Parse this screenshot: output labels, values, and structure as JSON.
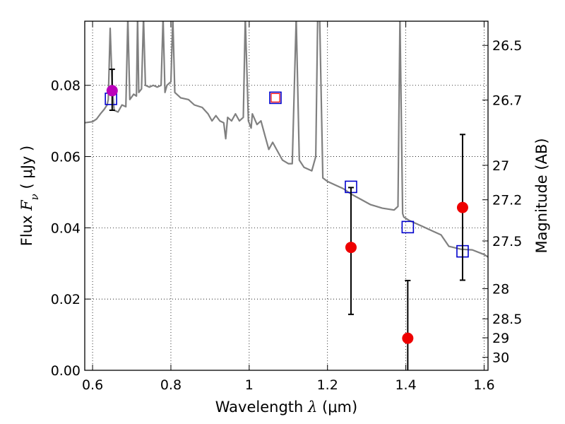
{
  "chart_data": {
    "type": "scatter",
    "xlabel": {
      "prefix": "Wavelength  ",
      "symbol": "λ",
      "unit": " (μm)"
    },
    "ylabel": {
      "prefix": "Flux  ",
      "symbol": "F",
      "sub": "ν",
      "unit": "  ( μJy )"
    },
    "y2label": "Magnitude (AB)",
    "xlim": [
      0.58,
      1.61
    ],
    "ylim": [
      0.0,
      0.098
    ],
    "grid": true,
    "x_ticks": [
      {
        "value": 0.6,
        "label": "0.6"
      },
      {
        "value": 0.8,
        "label": "0.8"
      },
      {
        "value": 1.0,
        "label": "1"
      },
      {
        "value": 1.2,
        "label": "1.2"
      },
      {
        "value": 1.4,
        "label": "1.4"
      },
      {
        "value": 1.6,
        "label": "1.6"
      }
    ],
    "y_ticks": [
      {
        "value": 0.0,
        "label": "0.00"
      },
      {
        "value": 0.02,
        "label": "0.02"
      },
      {
        "value": 0.04,
        "label": "0.04"
      },
      {
        "value": 0.06,
        "label": "0.06"
      },
      {
        "value": 0.08,
        "label": "0.08"
      }
    ],
    "y2_ticks": [
      {
        "mag": 26.5,
        "label": "26.5"
      },
      {
        "mag": 26.7,
        "label": "26.7"
      },
      {
        "mag": 27.0,
        "label": "27"
      },
      {
        "mag": 27.2,
        "label": "27.2"
      },
      {
        "mag": 27.5,
        "label": "27.5"
      },
      {
        "mag": 28.0,
        "label": "28"
      },
      {
        "mag": 28.5,
        "label": "28.5"
      },
      {
        "mag": 29.0,
        "label": "29"
      },
      {
        "mag": 30.0,
        "label": "30"
      }
    ],
    "series": [
      {
        "type": "line",
        "color": "#808080",
        "points": [
          [
            0.58,
            0.0695
          ],
          [
            0.6,
            0.0698
          ],
          [
            0.61,
            0.0705
          ],
          [
            0.62,
            0.072
          ],
          [
            0.63,
            0.0733
          ],
          [
            0.637,
            0.0745
          ],
          [
            0.64,
            0.076
          ],
          [
            0.645,
            0.096
          ],
          [
            0.65,
            0.08
          ],
          [
            0.655,
            0.073
          ],
          [
            0.665,
            0.0725
          ],
          [
            0.675,
            0.0745
          ],
          [
            0.685,
            0.074
          ],
          [
            0.69,
            0.099
          ],
          [
            0.695,
            0.076
          ],
          [
            0.705,
            0.0775
          ],
          [
            0.712,
            0.077
          ],
          [
            0.715,
            0.099
          ],
          [
            0.718,
            0.078
          ],
          [
            0.725,
            0.079
          ],
          [
            0.73,
            0.099
          ],
          [
            0.735,
            0.08
          ],
          [
            0.745,
            0.0795
          ],
          [
            0.755,
            0.08
          ],
          [
            0.765,
            0.0795
          ],
          [
            0.775,
            0.08
          ],
          [
            0.78,
            0.099
          ],
          [
            0.785,
            0.078
          ],
          [
            0.79,
            0.08
          ],
          [
            0.8,
            0.081
          ],
          [
            0.805,
            0.099
          ],
          [
            0.81,
            0.078
          ],
          [
            0.825,
            0.0765
          ],
          [
            0.845,
            0.076
          ],
          [
            0.86,
            0.0745
          ],
          [
            0.88,
            0.0738
          ],
          [
            0.895,
            0.072
          ],
          [
            0.905,
            0.07
          ],
          [
            0.915,
            0.0715
          ],
          [
            0.925,
            0.07
          ],
          [
            0.935,
            0.0695
          ],
          [
            0.94,
            0.065
          ],
          [
            0.945,
            0.071
          ],
          [
            0.955,
            0.07
          ],
          [
            0.965,
            0.072
          ],
          [
            0.975,
            0.07
          ],
          [
            0.985,
            0.071
          ],
          [
            0.99,
            0.099
          ],
          [
            0.998,
            0.07
          ],
          [
            1.005,
            0.068
          ],
          [
            1.008,
            0.072
          ],
          [
            1.02,
            0.069
          ],
          [
            1.03,
            0.07
          ],
          [
            1.04,
            0.066
          ],
          [
            1.05,
            0.062
          ],
          [
            1.06,
            0.064
          ],
          [
            1.07,
            0.062
          ],
          [
            1.085,
            0.059
          ],
          [
            1.1,
            0.058
          ],
          [
            1.11,
            0.058
          ],
          [
            1.12,
            0.099
          ],
          [
            1.128,
            0.059
          ],
          [
            1.14,
            0.057
          ],
          [
            1.16,
            0.056
          ],
          [
            1.17,
            0.06
          ],
          [
            1.175,
            0.099
          ],
          [
            1.18,
            0.099
          ],
          [
            1.188,
            0.054
          ],
          [
            1.2,
            0.053
          ],
          [
            1.22,
            0.052
          ],
          [
            1.24,
            0.051
          ],
          [
            1.26,
            0.0495
          ],
          [
            1.285,
            0.048
          ],
          [
            1.31,
            0.0465
          ],
          [
            1.34,
            0.0455
          ],
          [
            1.37,
            0.045
          ],
          [
            1.38,
            0.046
          ],
          [
            1.385,
            0.099
          ],
          [
            1.392,
            0.044
          ],
          [
            1.395,
            0.043
          ],
          [
            1.41,
            0.042
          ],
          [
            1.44,
            0.0405
          ],
          [
            1.47,
            0.039
          ],
          [
            1.49,
            0.038
          ],
          [
            1.51,
            0.0348
          ],
          [
            1.54,
            0.034
          ],
          [
            1.57,
            0.0338
          ],
          [
            1.6,
            0.0325
          ],
          [
            1.61,
            0.0318
          ]
        ]
      },
      {
        "type": "model_boxes",
        "color": "#0000cc",
        "points": [
          [
            0.647,
            0.0762
          ],
          [
            1.067,
            0.0765
          ],
          [
            1.26,
            0.0515
          ],
          [
            1.405,
            0.0402
          ],
          [
            1.545,
            0.0334
          ]
        ]
      },
      {
        "type": "inner_box",
        "color": "#ff0000",
        "points": [
          [
            1.067,
            0.0765
          ]
        ]
      },
      {
        "type": "observed_points",
        "points": [
          {
            "x": 0.65,
            "y": 0.0785,
            "err_low": 0.073,
            "err_high": 0.0845,
            "color": "#bb00bb"
          },
          {
            "x": 1.26,
            "y": 0.0345,
            "err_low": 0.0157,
            "err_high": 0.0513,
            "color": "#ee0000"
          },
          {
            "x": 1.405,
            "y": 0.009,
            "err_low": 0.0,
            "err_high": 0.0252,
            "color": "#ee0000"
          },
          {
            "x": 1.545,
            "y": 0.0457,
            "err_low": 0.0253,
            "err_high": 0.0662,
            "color": "#ee0000"
          }
        ]
      }
    ]
  }
}
